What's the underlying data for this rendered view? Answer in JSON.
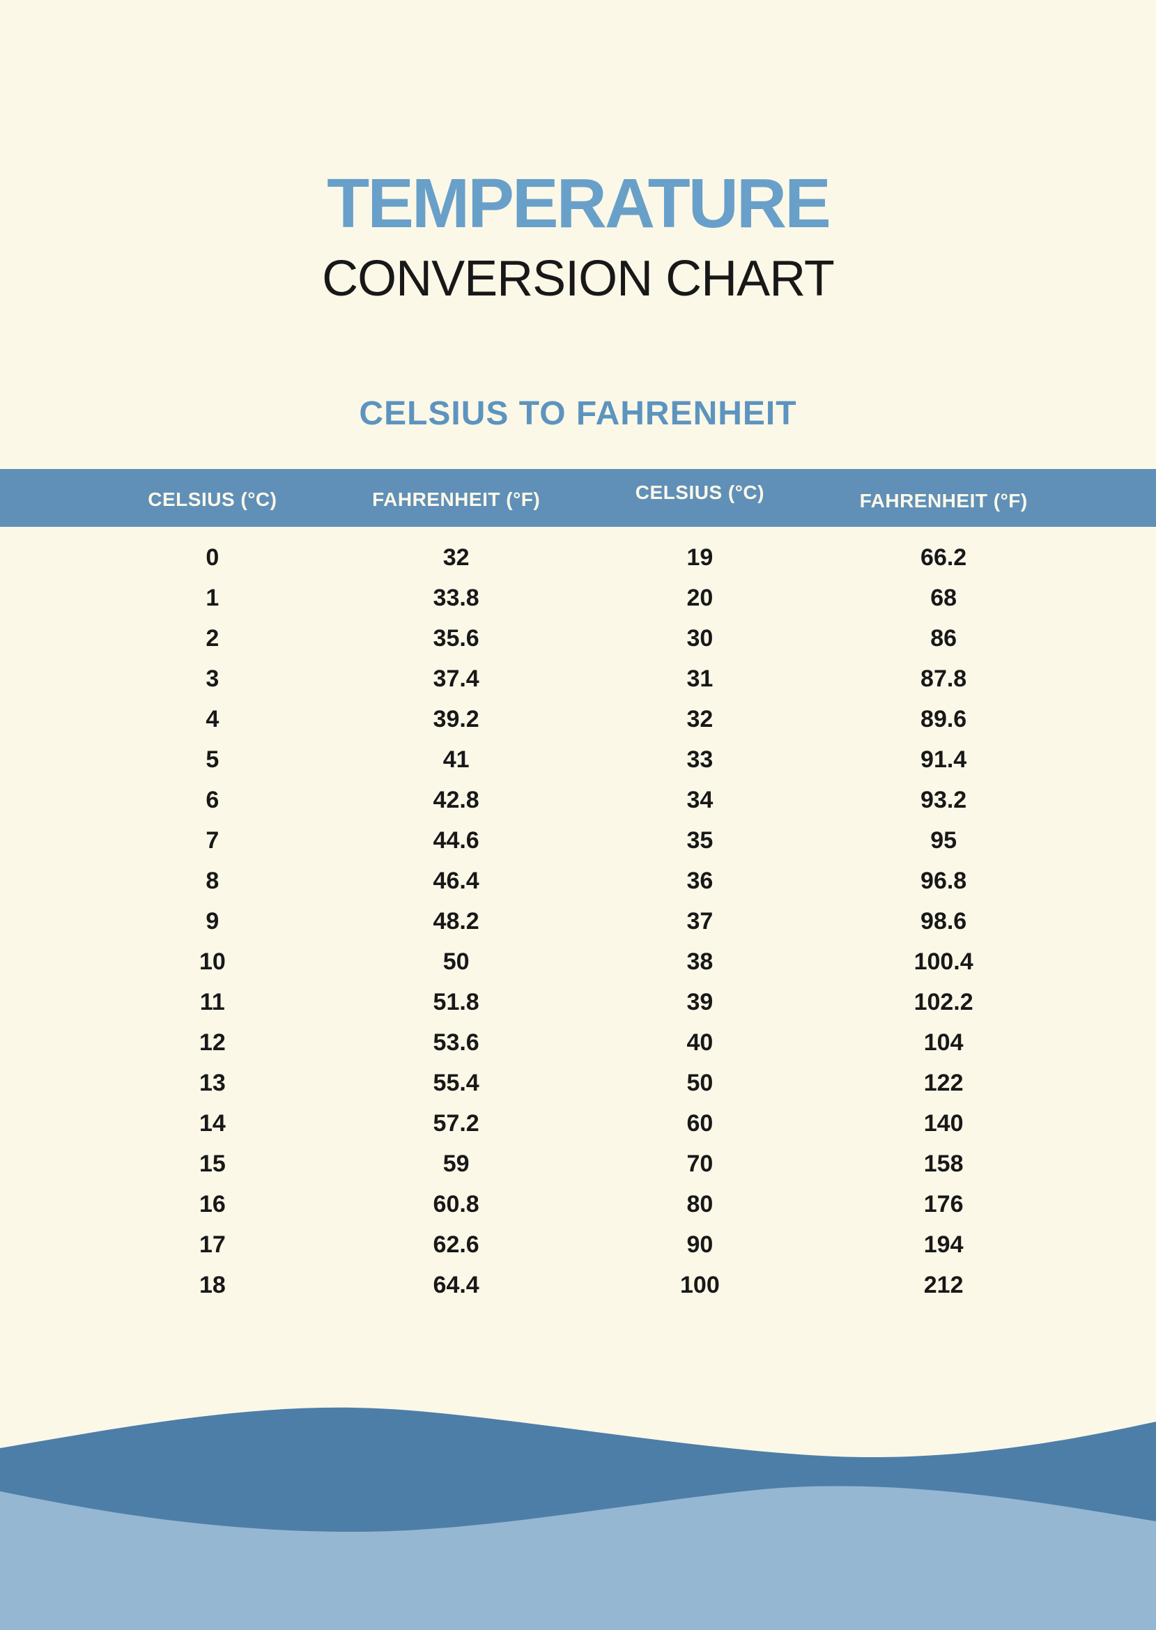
{
  "page": {
    "title": "TEMPERATURE",
    "subtitle": "CONVERSION CHART",
    "section_heading": "CELSIUS TO FAHRENHEIT"
  },
  "colors": {
    "background": "#fcf8e8",
    "title_blue": "#68a0c9",
    "heading_blue": "#5d94bf",
    "header_bar": "#6090b7",
    "header_text": "#fdf9ea",
    "body_text": "#181818",
    "wave_dark": "#4d7ea8",
    "wave_light": "#95b7d2"
  },
  "table": {
    "headers": [
      "CELSIUS (°C)",
      "FAHRENHEIT (°F)",
      "CELSIUS (°C)",
      "FAHRENHEIT (°F)"
    ],
    "rows": [
      [
        "0",
        "32",
        "19",
        "66.2"
      ],
      [
        "1",
        "33.8",
        "20",
        "68"
      ],
      [
        "2",
        "35.6",
        "30",
        "86"
      ],
      [
        "3",
        "37.4",
        "31",
        "87.8"
      ],
      [
        "4",
        "39.2",
        "32",
        "89.6"
      ],
      [
        "5",
        "41",
        "33",
        "91.4"
      ],
      [
        "6",
        "42.8",
        "34",
        "93.2"
      ],
      [
        "7",
        "44.6",
        "35",
        "95"
      ],
      [
        "8",
        "46.4",
        "36",
        "96.8"
      ],
      [
        "9",
        "48.2",
        "37",
        "98.6"
      ],
      [
        "10",
        "50",
        "38",
        "100.4"
      ],
      [
        "11",
        "51.8",
        "39",
        "102.2"
      ],
      [
        "12",
        "53.6",
        "40",
        "104"
      ],
      [
        "13",
        "55.4",
        "50",
        "122"
      ],
      [
        "14",
        "57.2",
        "60",
        "140"
      ],
      [
        "15",
        "59",
        "70",
        "158"
      ],
      [
        "16",
        "60.8",
        "80",
        "176"
      ],
      [
        "17",
        "62.6",
        "90",
        "194"
      ],
      [
        "18",
        "64.4",
        "100",
        "212"
      ]
    ]
  }
}
